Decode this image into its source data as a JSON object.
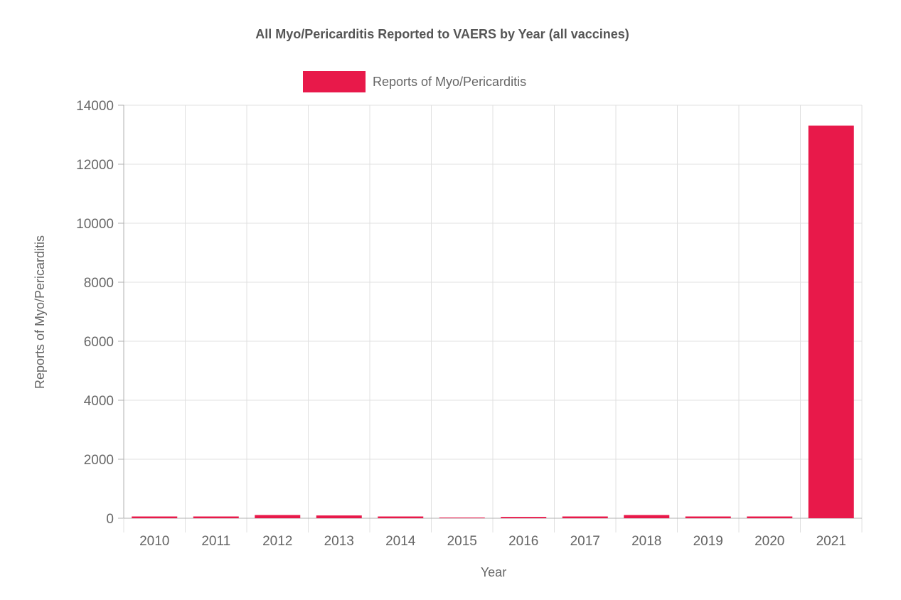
{
  "chart_data": {
    "type": "bar",
    "title": "All Myo/Pericarditis Reported to VAERS by Year (all vaccines)",
    "xlabel": "Year",
    "ylabel": "Reports of Myo/Pericarditis",
    "categories": [
      "2010",
      "2011",
      "2012",
      "2013",
      "2014",
      "2015",
      "2016",
      "2017",
      "2018",
      "2019",
      "2020",
      "2021"
    ],
    "series": [
      {
        "name": "Reports of Myo/Pericarditis",
        "color": "#e8194a",
        "values": [
          60,
          60,
          110,
          95,
          60,
          25,
          45,
          60,
          110,
          60,
          60,
          13310
        ]
      }
    ],
    "ylim": [
      0,
      14000
    ],
    "yticks": [
      "0",
      "2000",
      "4000",
      "6000",
      "8000",
      "10000",
      "12000",
      "14000"
    ],
    "grid": true,
    "legend_position": "top"
  }
}
